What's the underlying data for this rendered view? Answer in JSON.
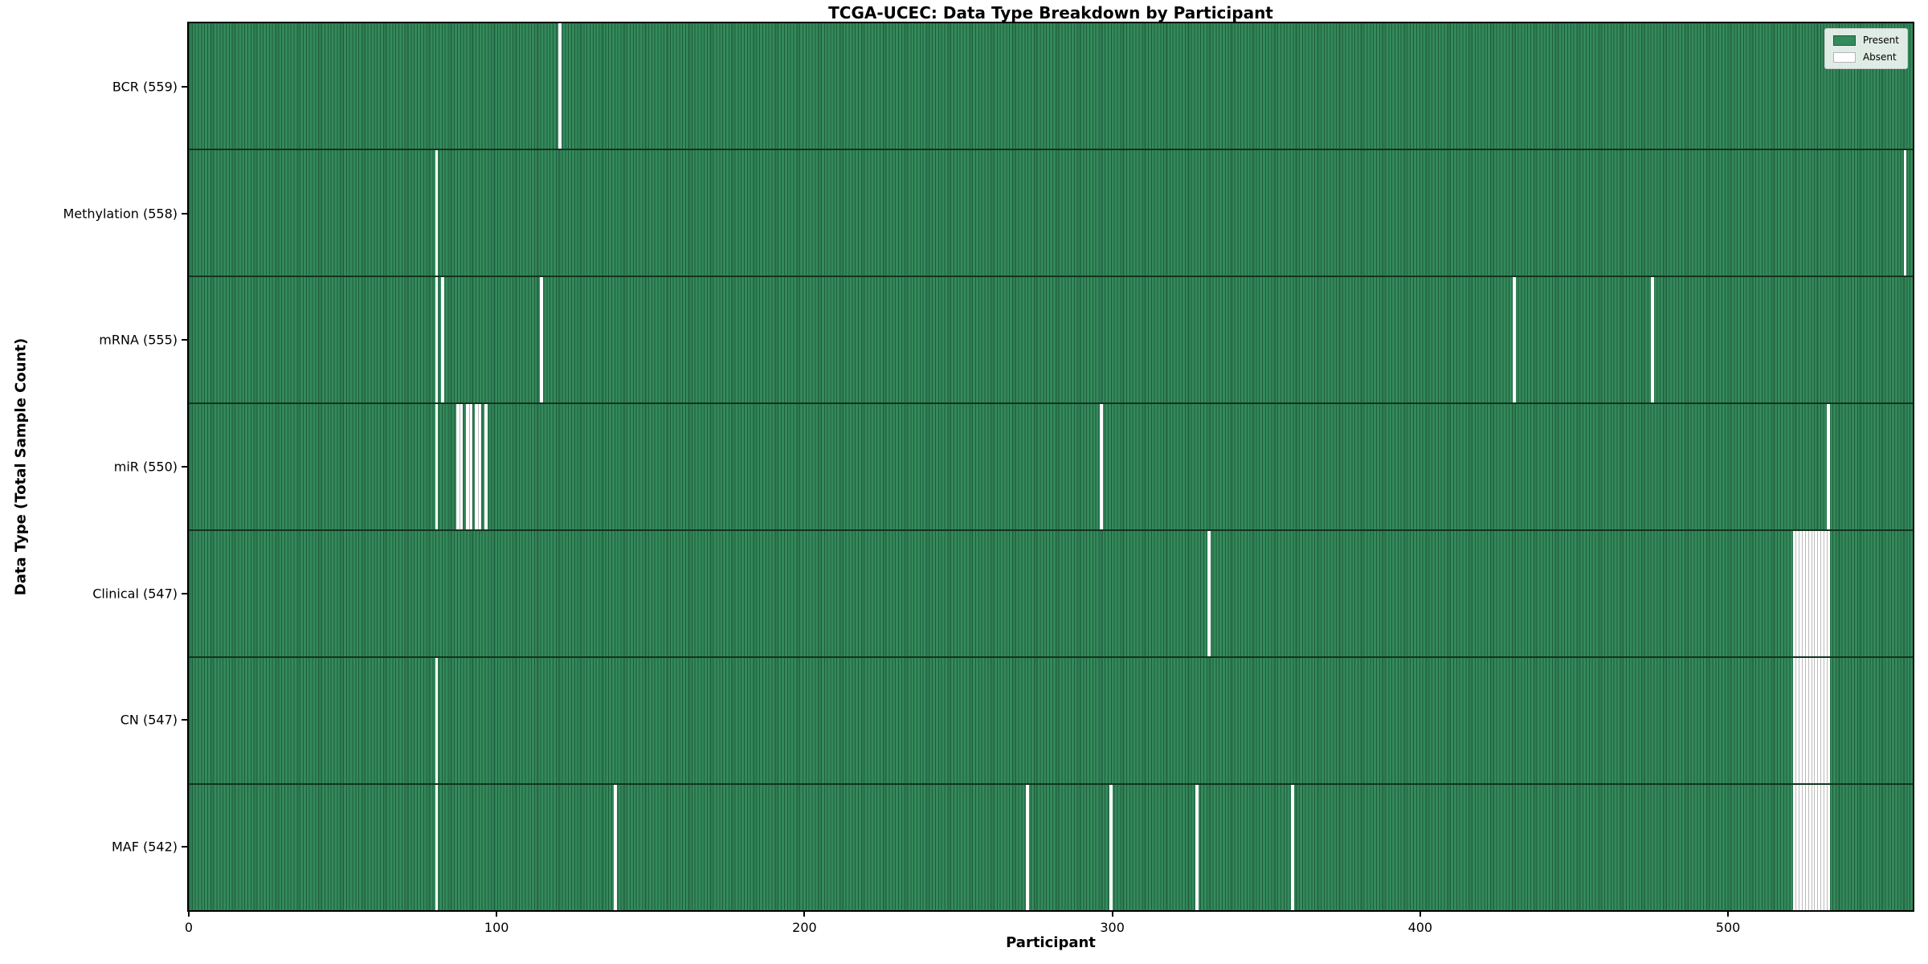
{
  "figure": {
    "title": "TCGA-UCEC: Data Type Breakdown by Participant",
    "xlabel": "Participant",
    "ylabel": "Data Type (Total Sample Count)"
  },
  "legend": {
    "entries": [
      "Present",
      "Absent"
    ],
    "position": "upper right"
  },
  "colors": {
    "present_fill": "#348a5b",
    "bar_edge": "#1e5c3c",
    "absent_fill": "#ffffff",
    "row_separator": "#14331f",
    "legend_bg": "rgba(255,255,255,0.85)",
    "legend_border": "#cccccc"
  },
  "chart_data": {
    "type": "heatmap",
    "title": "TCGA-UCEC: Data Type Breakdown by Participant",
    "xlabel": "Participant",
    "ylabel": "Data Type (Total Sample Count)",
    "xlim": [
      0,
      560
    ],
    "x_ticks": [
      0,
      100,
      200,
      300,
      400,
      500
    ],
    "grid": false,
    "legend_entries": [
      "Present",
      "Absent"
    ],
    "legend_position": "upper right",
    "total_participants": 560,
    "encoding": {
      "present": "green bar",
      "absent": "white gap"
    },
    "rows": [
      {
        "data_type": "BCR",
        "label": "BCR (559)",
        "present_count": 559,
        "absent_participants": [
          120
        ]
      },
      {
        "data_type": "Methylation",
        "label": "Methylation (558)",
        "present_count": 558,
        "absent_participants": [
          80,
          557
        ]
      },
      {
        "data_type": "mRNA",
        "label": "mRNA (555)",
        "present_count": 555,
        "absent_participants": [
          80,
          82,
          114,
          430,
          475
        ]
      },
      {
        "data_type": "miR",
        "label": "miR (550)",
        "present_count": 550,
        "absent_participants": [
          80,
          87,
          88,
          90,
          91,
          93,
          94,
          96,
          296,
          532
        ]
      },
      {
        "data_type": "Clinical",
        "label": "Clinical (547)",
        "present_count": 547,
        "absent_participants": [
          331,
          521,
          522,
          523,
          524,
          525,
          526,
          527,
          528,
          529,
          530,
          531,
          532
        ]
      },
      {
        "data_type": "CN",
        "label": "CN (547)",
        "present_count": 547,
        "absent_participants": [
          80,
          521,
          522,
          523,
          524,
          525,
          526,
          527,
          528,
          529,
          530,
          531,
          532
        ]
      },
      {
        "data_type": "MAF",
        "label": "MAF (542)",
        "present_count": 542,
        "absent_participants": [
          80,
          138,
          272,
          299,
          327,
          358,
          521,
          522,
          523,
          524,
          525,
          526,
          527,
          528,
          529,
          530,
          531,
          532
        ]
      }
    ]
  }
}
